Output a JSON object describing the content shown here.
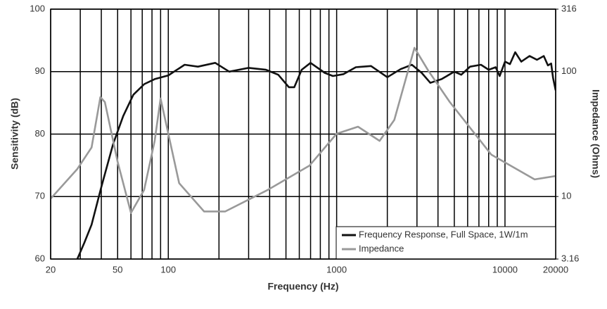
{
  "chart_data": {
    "type": "line",
    "xlabel": "Frequency (Hz)",
    "ylabel": "Sensitivity (dB)",
    "y2label": "Impedance (Ohms)",
    "xscale": "log",
    "y2scale": "log",
    "xlim": [
      20,
      20000
    ],
    "ylim": [
      60,
      100
    ],
    "y2lim": [
      3.16,
      316
    ],
    "xticks": [
      20,
      50,
      100,
      1000,
      10000,
      20000
    ],
    "xgrid": [
      30,
      40,
      60,
      70,
      80,
      90,
      200,
      300,
      400,
      500,
      600,
      700,
      800,
      900,
      2000,
      3000,
      4000,
      5000,
      6000,
      7000,
      8000,
      9000
    ],
    "yticks": [
      60,
      70,
      80,
      90,
      100
    ],
    "y2ticks": [
      3.16,
      10,
      100,
      316
    ],
    "grid": true,
    "legend": "lower right",
    "series": [
      {
        "name": "Frequency Response, Full Space, 1W/1m",
        "color": "#111111",
        "x": [
          28.8,
          31.7,
          35,
          40,
          47,
          54,
          62,
          72,
          83,
          100,
          125,
          150,
          190,
          230,
          300,
          380,
          450,
          520,
          560,
          620,
          700,
          850,
          950,
          1100,
          1300,
          1600,
          2000,
          2400,
          2800,
          3200,
          3600,
          4200,
          5000,
          5500,
          6200,
          7200,
          8000,
          8800,
          9300,
          10000,
          10700,
          11500,
          12500,
          14000,
          15500,
          17000,
          18000,
          18800,
          19300,
          20000
        ],
        "values": [
          60,
          62.6,
          65.5,
          71.5,
          78.4,
          82.9,
          86.3,
          88,
          88.8,
          89.4,
          91.1,
          90.8,
          91.4,
          90,
          90.6,
          90.3,
          89.5,
          87.5,
          87.5,
          90.3,
          91.4,
          89.8,
          89.3,
          89.6,
          90.7,
          90.9,
          89.1,
          90.4,
          91.1,
          89.8,
          88.2,
          88.8,
          90,
          89.5,
          90.8,
          91.1,
          90.3,
          90.7,
          89.3,
          91.6,
          91.2,
          93.1,
          91.6,
          92.5,
          91.9,
          92.5,
          91,
          91.3,
          89,
          87
        ]
      },
      {
        "name": "Impedance",
        "color": "#999999",
        "axis": "y2",
        "x": [
          20,
          28.8,
          35,
          39.5,
          42,
          50,
          60,
          71.8,
          83,
          90,
          96,
          116,
          163,
          218,
          390,
          690,
          1000,
          1340,
          1800,
          2200,
          2900,
          3500,
          4700,
          8300,
          15000,
          20000
        ],
        "values": [
          9.6,
          16.6,
          24.7,
          62.4,
          57,
          19,
          7.4,
          11.3,
          27.9,
          60.9,
          41,
          12.8,
          7.6,
          7.6,
          11.3,
          17.7,
          31.8,
          36.2,
          27.9,
          41,
          155,
          102,
          57,
          21.6,
          13.7,
          14.6
        ]
      }
    ]
  }
}
